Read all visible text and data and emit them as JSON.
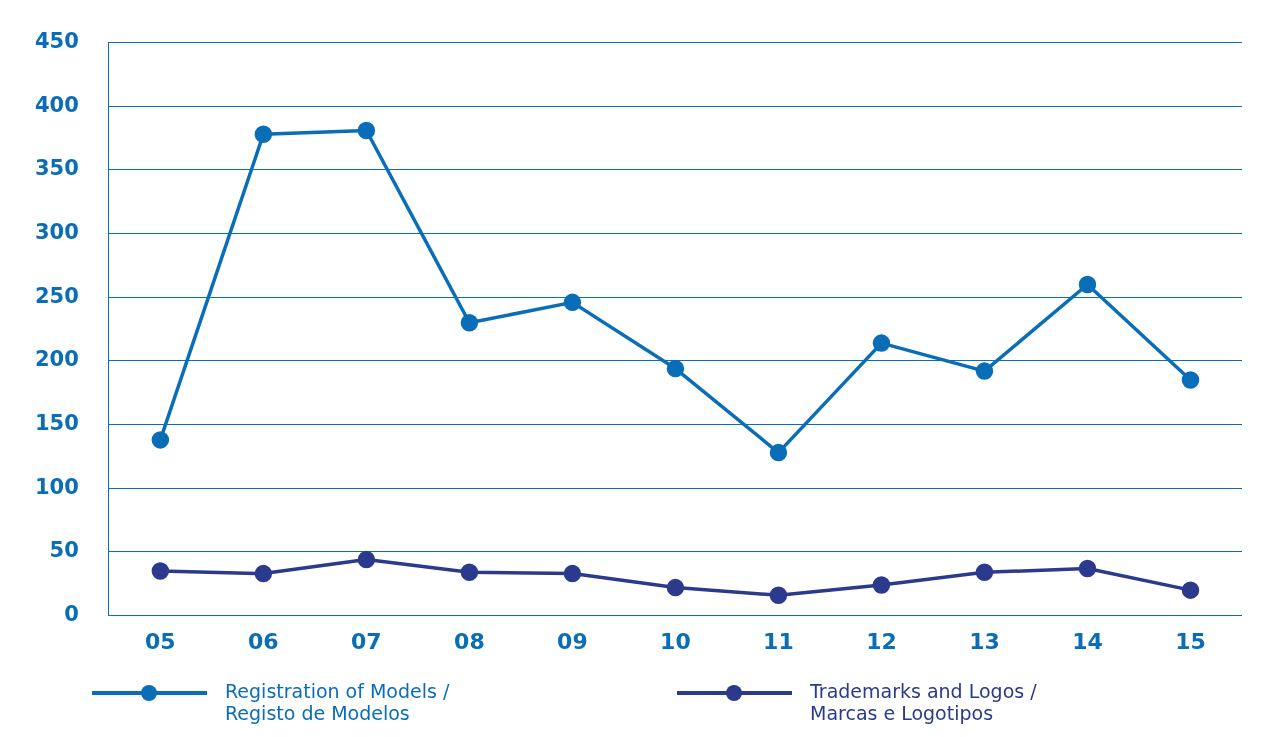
{
  "chart_data": {
    "type": "line",
    "categories": [
      "05",
      "06",
      "07",
      "08",
      "09",
      "10",
      "11",
      "12",
      "13",
      "14",
      "15"
    ],
    "series": [
      {
        "name": "Registration of Models / Registo de Modelos",
        "color": "#0a6db8",
        "values": [
          138,
          378,
          381,
          230,
          246,
          194,
          128,
          214,
          192,
          260,
          185
        ]
      },
      {
        "name": "Trademarks and Logos / Marcas e Logotipos",
        "color": "#2b3a8c",
        "values": [
          35,
          33,
          44,
          34,
          33,
          22,
          16,
          24,
          34,
          37,
          20
        ]
      }
    ],
    "ylim": [
      0,
      450
    ],
    "yticks": [
      0,
      50,
      100,
      150,
      200,
      250,
      300,
      350,
      400,
      450
    ],
    "grid": "y",
    "legend": "bottom",
    "marker": "circle",
    "line_style": "solid"
  }
}
